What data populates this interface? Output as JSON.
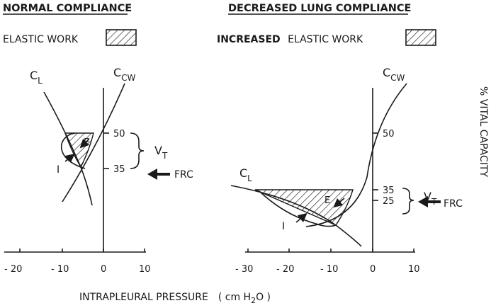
{
  "headers": {
    "normal": "NORMAL COMPLIANCE",
    "decreased": "DECREASED LUNG COMPLIANCE"
  },
  "legend": {
    "left": "ELASTIC WORK",
    "right_bold": "INCREASED",
    "right_rest": "ELASTIC WORK"
  },
  "labels": {
    "cl_main": "C",
    "cl_sub": "L",
    "ccw_main": "C",
    "ccw_sub": "CW",
    "vt_main": "V",
    "vt_sub": "T",
    "frc": "FRC",
    "inspiration": "I",
    "expiration": "E",
    "y_axis": "% VITAL CAPACITY"
  },
  "x_axis": {
    "title_main": "INTRAPLEURAL PRESSURE",
    "title_unit_pre": "( cm H",
    "title_unit_sub": "2",
    "title_unit_post": "O )",
    "left_ticks": [
      "- 20",
      "- 10",
      "0",
      "10"
    ],
    "right_ticks": [
      "- 30",
      "- 20",
      "- 10",
      "0",
      "10"
    ]
  },
  "left_y_ticks": [
    "50",
    "35"
  ],
  "right_y_ticks": [
    "50",
    "35",
    "25"
  ]
}
